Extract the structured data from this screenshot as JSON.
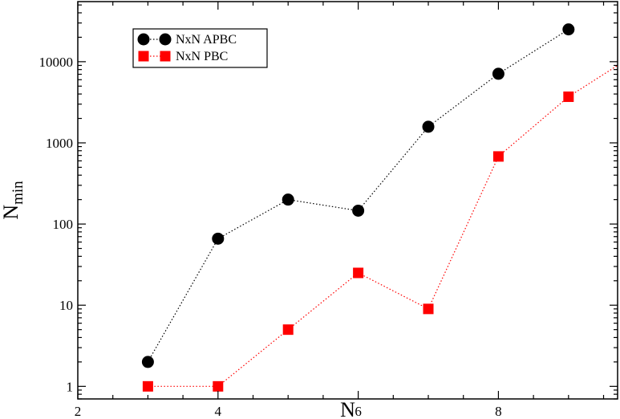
{
  "chart_data": {
    "type": "line",
    "x_scale": "linear",
    "y_scale": "log",
    "xlim": [
      2,
      9.7
    ],
    "ylim": [
      0.7,
      55000
    ],
    "x_ticks": [
      2,
      4,
      6,
      8
    ],
    "x_tick_labels": [
      "2",
      "4",
      "6",
      "8"
    ],
    "y_ticks": [
      1,
      10,
      100,
      1000,
      10000
    ],
    "y_tick_labels": [
      "1",
      "10",
      "100",
      "1000",
      "10000"
    ],
    "xlabel": "N",
    "ylabel": "N",
    "ylabel_subscript": "min",
    "legend_position": "top-left",
    "series": [
      {
        "name": "NxN APBC",
        "marker": "circle",
        "line_style": "dotted",
        "color": "#000000",
        "x": [
          3,
          4,
          5,
          6,
          7,
          8,
          9
        ],
        "y": [
          2,
          66,
          200,
          146,
          1580,
          7100,
          25000
        ]
      },
      {
        "name": "NxN PBC",
        "marker": "square",
        "line_style": "dotted",
        "color": "#ff0000",
        "x": [
          3,
          4,
          5,
          6,
          7,
          8,
          9,
          9.7
        ],
        "y": [
          1,
          1,
          5,
          25,
          9,
          680,
          3700,
          9000
        ],
        "last_point_marker": false
      }
    ]
  }
}
